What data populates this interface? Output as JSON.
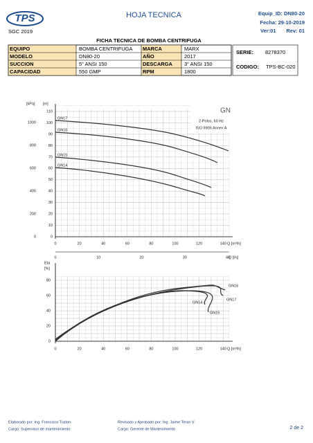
{
  "header": {
    "title": "HOJA TECNICA",
    "sgc": "SGC 2019",
    "equip_id": "Equip_ID:  DN80-20",
    "fecha": "Fecha: 29-10-2019",
    "version": "Ver:01",
    "revision": "Rev: 01"
  },
  "table": {
    "title": "FICHA TECNICA DE BOMBA CENTRIFUGA",
    "rows": [
      [
        "EQUIPO",
        "BOMBA CENTRIFUGA",
        "MARCA",
        "MARX"
      ],
      [
        "MODELO",
        "DN80-20",
        "AÑO",
        "2017"
      ],
      [
        "SUCCION",
        "5\"      ANSI 150",
        "DESCARGA",
        "3\"      ANSI 150"
      ],
      [
        "CAPACIDAD",
        "550 GMP",
        "RPM",
        "1800"
      ]
    ],
    "serie_label": "SERIE:",
    "serie": "8278370",
    "codigo_label": "CODIGO:",
    "codigo": "TPS-BC-020"
  },
  "head_chart": {
    "unit_kpa": "[kPa]",
    "unit_m": "[m]",
    "kpa_ticks": [
      "1000",
      "800",
      "600",
      "400",
      "200",
      "0"
    ],
    "m_ticks": [
      "110",
      "100",
      "90",
      "80",
      "70",
      "60",
      "50",
      "40",
      "30",
      "20",
      "10",
      "0"
    ],
    "q_ticks": [
      "0",
      "20",
      "40",
      "60",
      "80",
      "100",
      "120",
      "140"
    ],
    "q_label": "Q [m³/h]",
    "ls_ticks": [
      "0",
      "10",
      "20",
      "30",
      "40"
    ],
    "ls_label": "Q [l/s]",
    "model": "GN",
    "poles": "2-Polos, 60 Hz",
    "standard": "ISO 9906 Annex A",
    "curves": [
      "GN17",
      "GN16",
      "GN15",
      "GN14"
    ]
  },
  "eff_chart": {
    "unit": "Eta",
    "unit2": "[%]",
    "y_ticks": [
      "80",
      "60",
      "40",
      "20",
      "0"
    ],
    "q_ticks": [
      "0",
      "20",
      "40",
      "60",
      "80",
      "100",
      "120",
      "140"
    ],
    "q_label": "Q [m³/h]",
    "curves": [
      "GN16",
      "GN17",
      "GN14",
      "GN15"
    ]
  },
  "footer": {
    "elaborado": "Elaborado por:  Ing. Francisco Tuston",
    "cargo1": "Cargo:  Supervisor de mantenimiento",
    "revisado": "Revisado y Aprobado por:  Ing. Jaime Teran V.",
    "cargo2": "Cargo:  Gerente de Mantenimiento",
    "page": "2 de 2"
  }
}
